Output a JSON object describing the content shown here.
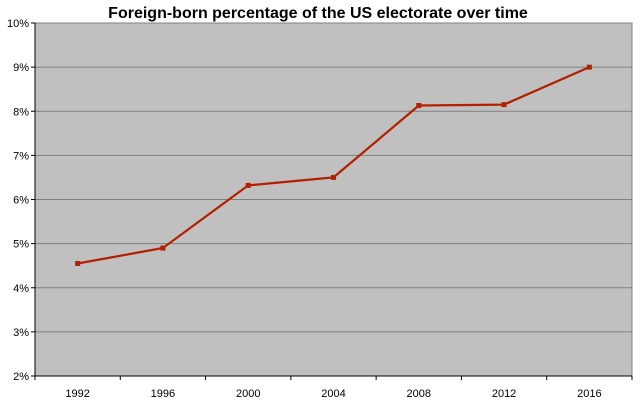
{
  "chart_data": {
    "type": "line",
    "title": "Foreign-born percentage of the US electorate over time",
    "xlabel": "",
    "ylabel": "",
    "categories": [
      "1992",
      "1996",
      "2000",
      "2004",
      "2008",
      "2012",
      "2016"
    ],
    "series": [
      {
        "values": [
          4.55,
          4.9,
          6.32,
          6.5,
          8.13,
          8.15,
          9.0
        ]
      }
    ],
    "ylim": [
      2,
      10
    ],
    "y_ticks": [
      "2%",
      "3%",
      "4%",
      "5%",
      "6%",
      "7%",
      "8%",
      "9%",
      "10%"
    ],
    "grid": "horizontal",
    "legend": "none",
    "colors": {
      "plot_background": "#c0c0c0",
      "gridline": "#808080",
      "line": "#b22000",
      "marker": "#b22000"
    }
  }
}
